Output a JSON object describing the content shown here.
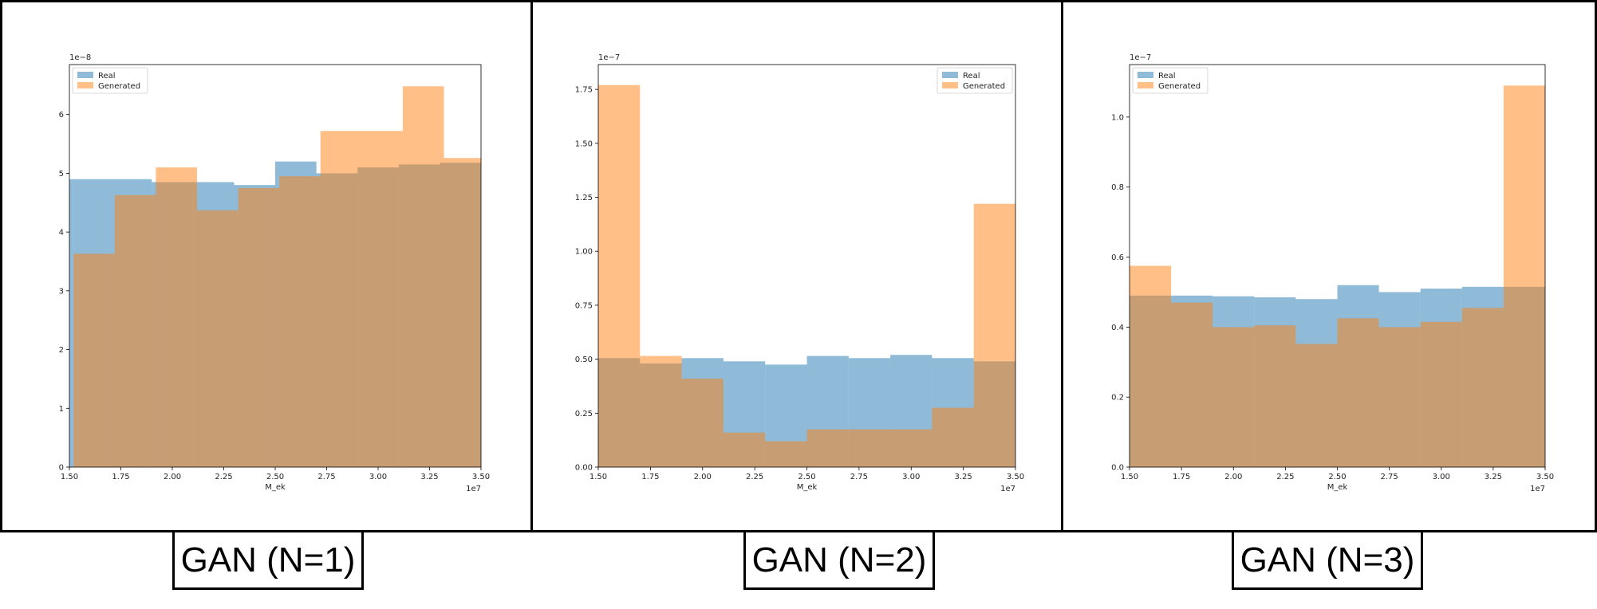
{
  "captions": [
    "GAN (N=1)",
    "GAN (N=2)",
    "GAN (N=3)"
  ],
  "colors": {
    "real": "#1f77b4",
    "generated": "#ff7f0e"
  },
  "chart_data": [
    {
      "type": "bar",
      "title": "",
      "xlabel": "M_ek",
      "ylabel": "",
      "x_offset_label": "1e7",
      "y_offset_label": "1e−8",
      "xlim": [
        1.5,
        3.5
      ],
      "ylim": [
        0,
        6.85
      ],
      "x_ticks": [
        1.5,
        1.75,
        2.0,
        2.25,
        2.5,
        2.75,
        3.0,
        3.25,
        3.5
      ],
      "x_tick_labels": [
        "1.50",
        "1.75",
        "2.00",
        "2.25",
        "2.50",
        "2.75",
        "3.00",
        "3.25",
        "3.50"
      ],
      "y_ticks": [
        0,
        1,
        2,
        3,
        4,
        5,
        6
      ],
      "y_tick_labels": [
        "0",
        "1",
        "2",
        "3",
        "4",
        "5",
        "6"
      ],
      "legend_position": "top-left",
      "series": [
        {
          "name": "Real",
          "bin_edges": [
            1.5,
            1.52,
            1.9,
            2.1,
            2.3,
            2.5,
            2.7,
            2.9,
            3.1,
            3.3,
            3.5
          ],
          "values": [
            4.9,
            4.9,
            4.85,
            4.85,
            4.8,
            5.2,
            5.0,
            5.1,
            5.15,
            5.18
          ]
        },
        {
          "name": "Generated",
          "bin_edges": [
            1.5,
            1.52,
            1.72,
            1.92,
            2.12,
            2.32,
            2.52,
            2.72,
            2.92,
            3.12,
            3.32,
            3.5
          ],
          "values": [
            0,
            3.63,
            4.63,
            5.1,
            4.37,
            4.75,
            4.95,
            5.72,
            5.72,
            6.48,
            5.26
          ]
        }
      ]
    },
    {
      "type": "bar",
      "title": "",
      "xlabel": "M_ek",
      "ylabel": "",
      "x_offset_label": "1e7",
      "y_offset_label": "1e−7",
      "xlim": [
        1.5,
        3.5
      ],
      "ylim": [
        0,
        1.865
      ],
      "x_ticks": [
        1.5,
        1.75,
        2.0,
        2.25,
        2.5,
        2.75,
        3.0,
        3.25,
        3.5
      ],
      "x_tick_labels": [
        "1.50",
        "1.75",
        "2.00",
        "2.25",
        "2.50",
        "2.75",
        "3.00",
        "3.25",
        "3.50"
      ],
      "y_ticks": [
        0,
        0.25,
        0.5,
        0.75,
        1.0,
        1.25,
        1.5,
        1.75
      ],
      "y_tick_labels": [
        "0.00",
        "0.25",
        "0.50",
        "0.75",
        "1.00",
        "1.25",
        "1.50",
        "1.75"
      ],
      "legend_position": "top-right",
      "series": [
        {
          "name": "Real",
          "bin_edges": [
            1.5,
            1.7,
            1.9,
            2.1,
            2.3,
            2.5,
            2.7,
            2.9,
            3.1,
            3.3,
            3.5
          ],
          "values": [
            0.505,
            0.48,
            0.505,
            0.49,
            0.475,
            0.515,
            0.505,
            0.52,
            0.505,
            0.49
          ]
        },
        {
          "name": "Generated",
          "bin_edges": [
            1.5,
            1.7,
            1.9,
            2.1,
            2.3,
            2.5,
            2.7,
            2.9,
            3.1,
            3.3,
            3.5
          ],
          "values": [
            1.77,
            0.515,
            0.41,
            0.16,
            0.12,
            0.175,
            0.175,
            0.175,
            0.275,
            1.22
          ]
        }
      ]
    },
    {
      "type": "bar",
      "title": "",
      "xlabel": "M_ek",
      "ylabel": "",
      "x_offset_label": "1e7",
      "y_offset_label": "1e−7",
      "xlim": [
        1.5,
        3.5
      ],
      "ylim": [
        0,
        1.15
      ],
      "x_ticks": [
        1.5,
        1.75,
        2.0,
        2.25,
        2.5,
        2.75,
        3.0,
        3.25,
        3.5
      ],
      "x_tick_labels": [
        "1.50",
        "1.75",
        "2.00",
        "2.25",
        "2.50",
        "2.75",
        "3.00",
        "3.25",
        "3.50"
      ],
      "y_ticks": [
        0,
        0.2,
        0.4,
        0.6,
        0.8,
        1.0
      ],
      "y_tick_labels": [
        "0.0",
        "0.2",
        "0.4",
        "0.6",
        "0.8",
        "1.0"
      ],
      "legend_position": "top-left",
      "series": [
        {
          "name": "Real",
          "bin_edges": [
            1.5,
            1.7,
            1.9,
            2.1,
            2.3,
            2.5,
            2.7,
            2.9,
            3.1,
            3.3,
            3.5
          ],
          "values": [
            0.49,
            0.49,
            0.488,
            0.485,
            0.48,
            0.52,
            0.5,
            0.51,
            0.515,
            0.515
          ]
        },
        {
          "name": "Generated",
          "bin_edges": [
            1.5,
            1.7,
            1.9,
            2.1,
            2.3,
            2.5,
            2.7,
            2.9,
            3.1,
            3.3,
            3.5
          ],
          "values": [
            0.575,
            0.47,
            0.4,
            0.405,
            0.352,
            0.425,
            0.4,
            0.415,
            0.455,
            1.09
          ]
        }
      ]
    }
  ]
}
